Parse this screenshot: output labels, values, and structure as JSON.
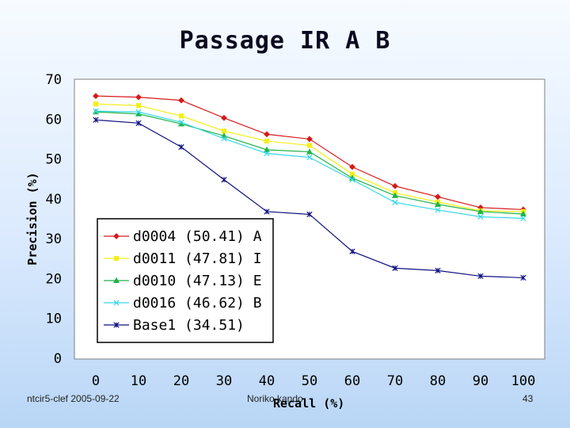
{
  "slide": {
    "title": "Passage IR A B",
    "footer_left": "ntcir5-clef  2005-09-22",
    "footer_center": "Noriko kando",
    "page_number": "43"
  },
  "chart_data": {
    "type": "line",
    "title": "Passage IR A B",
    "xlabel": "Recall (%)",
    "ylabel": "Precision (%)",
    "x": [
      0,
      10,
      20,
      30,
      40,
      50,
      60,
      70,
      80,
      90,
      100
    ],
    "xlim": [
      0,
      100
    ],
    "ylim": [
      0,
      70
    ],
    "xticks": [
      0,
      10,
      20,
      30,
      40,
      50,
      60,
      70,
      80,
      90,
      100
    ],
    "yticks": [
      0,
      10,
      20,
      30,
      40,
      50,
      60,
      70
    ],
    "grid": false,
    "legend_position": "bottom-left",
    "series": [
      {
        "name": "d0004 (50.41) A",
        "color": "#d61a1a",
        "marker": "diamond",
        "values": [
          65.8,
          65.5,
          64.7,
          60.3,
          56.2,
          55.0,
          48.0,
          43.2,
          40.5,
          37.8,
          37.3
        ]
      },
      {
        "name": "d0011 (47.81) I",
        "color": "#f2ef1a",
        "marker": "square",
        "values": [
          63.8,
          63.4,
          60.8,
          57.0,
          54.5,
          53.4,
          46.2,
          41.5,
          39.2,
          37.0,
          36.8
        ]
      },
      {
        "name": "d0010 (47.13) E",
        "color": "#22b24a",
        "marker": "triangle",
        "values": [
          61.8,
          61.3,
          58.8,
          55.8,
          52.3,
          51.8,
          45.2,
          40.8,
          38.6,
          36.8,
          36.2
        ]
      },
      {
        "name": "d0016 (46.62) B",
        "color": "#35d8e8",
        "marker": "x",
        "values": [
          62.0,
          61.8,
          59.2,
          55.1,
          51.4,
          50.4,
          44.8,
          39.1,
          37.2,
          35.5,
          35.1
        ]
      },
      {
        "name": "Base1 (34.51)",
        "color": "#101080",
        "marker": "star",
        "values": [
          59.8,
          59.0,
          53.0,
          44.8,
          36.8,
          36.1,
          26.8,
          22.6,
          22.0,
          20.6,
          20.2
        ]
      }
    ]
  }
}
